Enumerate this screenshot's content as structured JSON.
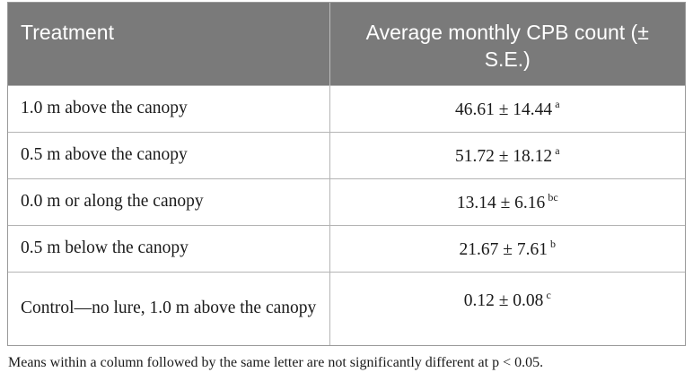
{
  "table": {
    "headers": [
      "Treatment",
      "Average monthly CPB count (± S.E.)"
    ],
    "rows": [
      {
        "treatment": "1.0 m above the canopy",
        "count": "46.61 ± 14.44",
        "letter": "a"
      },
      {
        "treatment": "0.5 m above the canopy",
        "count": "51.72 ± 18.12",
        "letter": "a"
      },
      {
        "treatment": "0.0 m or along the canopy",
        "count": "13.14 ± 6.16",
        "letter": "bc"
      },
      {
        "treatment": "0.5 m below the canopy",
        "count": "21.67 ± 7.61",
        "letter": "b"
      },
      {
        "treatment": "Control—no lure, 1.0 m above the canopy",
        "count": "0.12 ± 0.08",
        "letter": "c"
      }
    ],
    "footnote": "Means within a column followed by the same letter are not significantly different at p < 0.05."
  },
  "colors": {
    "header_bg": "#7a7a7a",
    "header_text": "#ffffff",
    "border": "#b4b4b4"
  }
}
